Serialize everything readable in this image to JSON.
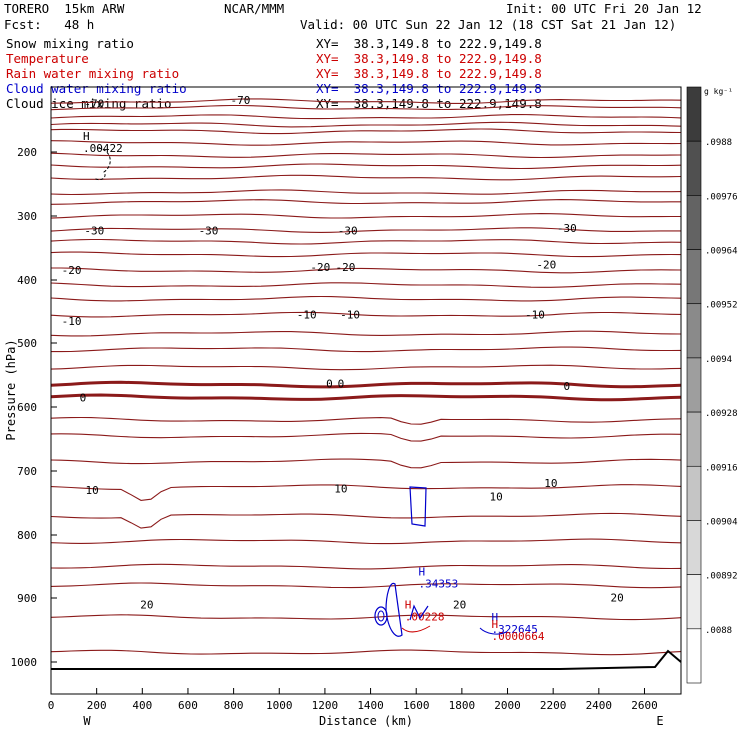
{
  "header": {
    "model": "TORERO  15km ARW",
    "org": "NCAR/MMM",
    "init": "Init: 00 UTC Fri 20 Jan 12",
    "fcst": "Fcst:   48 h",
    "valid": "Valid: 00 UTC Sun 22 Jan 12 (18 CST Sat 21 Jan 12)"
  },
  "fields": [
    {
      "name": "Snow mixing ratio",
      "xy": "XY=  38.3,149.8 to 222.9,149.8",
      "color": "#000000"
    },
    {
      "name": "Temperature",
      "xy": "XY=  38.3,149.8 to 222.9,149.8",
      "color": "#cc0000"
    },
    {
      "name": "Rain water mixing ratio",
      "xy": "XY=  38.3,149.8 to 222.9,149.8",
      "color": "#cc0000"
    },
    {
      "name": "Cloud water mixing ratio",
      "xy": "XY=  38.3,149.8 to 222.9,149.8",
      "color": "#0000cc"
    },
    {
      "name": "Cloud ice mixing ratio",
      "xy": "XY=  38.3,149.8 to 222.9,149.8",
      "color": "#000000"
    }
  ],
  "chart_data": {
    "type": "line",
    "xlabel": "Distance (km)",
    "ylabel": "Pressure (hPa)",
    "xlim": [
      0,
      2760
    ],
    "ylim": [
      1050,
      100
    ],
    "x_ticks": [
      0,
      200,
      400,
      600,
      800,
      1000,
      1200,
      1400,
      1600,
      1800,
      2000,
      2200,
      2400,
      2600
    ],
    "y_ticks": [
      200,
      300,
      400,
      500,
      600,
      700,
      800,
      900,
      1000
    ],
    "y_scale": "log",
    "left_end_label": "W",
    "right_end_label": "E",
    "isotherm_color": "#8b1a1a",
    "isotherms_hPa": [
      122,
      132,
      146,
      158,
      168,
      186,
      205,
      222,
      240,
      263,
      278,
      300,
      322,
      340,
      360,
      385,
      408,
      430,
      455,
      485,
      510,
      538,
      565,
      585,
      620,
      645,
      685,
      725,
      770,
      810,
      850,
      880,
      930,
      985
    ],
    "isotherm_labels": [
      {
        "text": "-70",
        "x": 190,
        "p": 125
      },
      {
        "text": "-70",
        "x": 830,
        "p": 120
      },
      {
        "text": "-30",
        "x": 190,
        "p": 323
      },
      {
        "text": "-30",
        "x": 690,
        "p": 323
      },
      {
        "text": "-30",
        "x": 1300,
        "p": 323
      },
      {
        "text": "-30",
        "x": 2260,
        "p": 319
      },
      {
        "text": "-20",
        "x": 90,
        "p": 384
      },
      {
        "text": "-20",
        "x": 1180,
        "p": 380
      },
      {
        "text": "-20",
        "x": 1290,
        "p": 380
      },
      {
        "text": "-20",
        "x": 2170,
        "p": 376
      },
      {
        "text": "-10",
        "x": 90,
        "p": 465
      },
      {
        "text": "-10",
        "x": 1120,
        "p": 455
      },
      {
        "text": "-10",
        "x": 1310,
        "p": 455
      },
      {
        "text": "-10",
        "x": 2120,
        "p": 455
      },
      {
        "text": "0",
        "x": 140,
        "p": 585
      },
      {
        "text": "0",
        "x": 1220,
        "p": 563
      },
      {
        "text": "0",
        "x": 1270,
        "p": 563
      },
      {
        "text": "0",
        "x": 2260,
        "p": 567
      },
      {
        "text": "10",
        "x": 180,
        "p": 730
      },
      {
        "text": "10",
        "x": 1270,
        "p": 727
      },
      {
        "text": "10",
        "x": 1950,
        "p": 740
      },
      {
        "text": "10",
        "x": 2190,
        "p": 719
      },
      {
        "text": "20",
        "x": 420,
        "p": 910
      },
      {
        "text": "20",
        "x": 1790,
        "p": 910
      },
      {
        "text": "20",
        "x": 2480,
        "p": 899
      }
    ],
    "max_labels": [
      {
        "symbol": "H",
        "value": ".00422",
        "x": 140,
        "p": 200,
        "color": "#000000"
      },
      {
        "symbol": "H",
        "value": ".34353",
        "x": 1610,
        "p": 883,
        "color": "#0000cc"
      },
      {
        "symbol": "H",
        "value": ".00228",
        "x": 1550,
        "p": 935,
        "color": "#cc0000"
      },
      {
        "symbol": "H",
        "value": ".322645",
        "x": 1930,
        "p": 955,
        "color": "#0000cc"
      },
      {
        "symbol": "H",
        "value": ".0000664",
        "x": 1930,
        "p": 966,
        "color": "#cc0000"
      }
    ],
    "colorbar": {
      "unit": "g kg⁻¹",
      "ticks": [
        ".0988",
        ".00976",
        ".00964",
        ".00952",
        ".0094",
        ".00928",
        ".00916",
        ".00904",
        ".00892",
        ".0088"
      ]
    }
  }
}
